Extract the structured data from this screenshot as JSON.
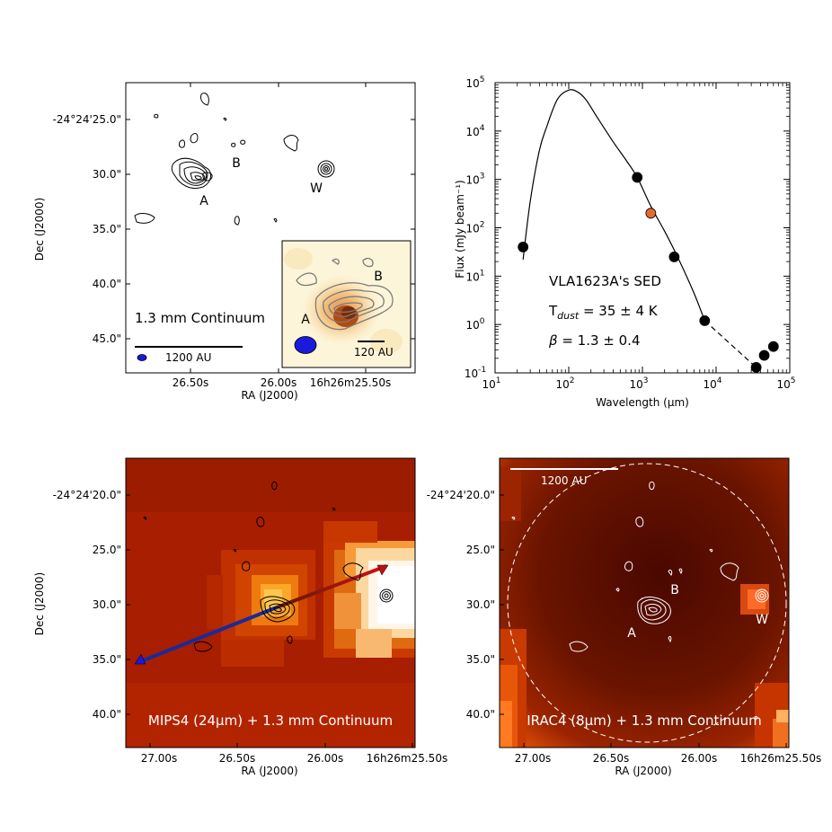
{
  "panels": {
    "continuum": {
      "ra_ticks": [
        "26.50s",
        "26.00s",
        "16h26m25.50s"
      ],
      "dec_ticks": [
        "-24°24'25.0\"",
        "30.0\"",
        "35.0\"",
        "40.0\"",
        "45.0\""
      ],
      "xlabel": "RA (J2000)",
      "ylabel": "Dec (J2000)",
      "label": "1.3 mm Continuum",
      "scalebar": "1200 AU",
      "sources": [
        "A",
        "B",
        "W"
      ],
      "inset": {
        "sources": [
          "A",
          "B"
        ],
        "scalebar": "120 AU"
      }
    },
    "sed": {
      "title": "VLA1623A's SED",
      "tdust_symbol": "T",
      "tdust_sub": "dust",
      "tdust_text": " = 35  ± 4 K",
      "beta_symbol": "β",
      "beta_text": " = 1.3  ± 0.4",
      "ylabel": "Flux (mJy beam⁻¹)",
      "xlabel": "Wavelength (μm)",
      "x_ticks_base": [
        "10",
        "10",
        "10",
        "10",
        "10"
      ],
      "x_ticks_exp": [
        "1",
        "2",
        "3",
        "4",
        "5"
      ],
      "y_ticks_base": [
        "10",
        "10",
        "10",
        "10",
        "10",
        "10",
        "10"
      ],
      "y_ticks_exp": [
        "-1",
        "0",
        "1",
        "2",
        "3",
        "4",
        "5"
      ]
    },
    "mips": {
      "ra_ticks": [
        "27.00s",
        "26.50s",
        "26.00s",
        "16h26m25.50s"
      ],
      "dec_ticks": [
        "-24°24'20.0\"",
        "25.0\"",
        "30.0\"",
        "35.0\"",
        "40.0\""
      ],
      "xlabel": "RA (J2000)",
      "ylabel": "Dec (J2000)",
      "label": "MIPS4 (24μm) + 1.3 mm Continuum"
    },
    "irac": {
      "ra_ticks": [
        "27.00s",
        "26.50s",
        "26.00s",
        "16h26m25.50s"
      ],
      "dec_ticks": [
        "-24°24'20.0\"",
        "25.0\"",
        "30.0\"",
        "35.0\"",
        "40.0\""
      ],
      "xlabel": "RA (J2000)",
      "label": "IRAC4 (8μm) + 1.3 mm Continuum",
      "scalebar": "1200 AU",
      "sources": [
        "A",
        "B",
        "W"
      ]
    }
  },
  "chart_data": {
    "type": "scatter",
    "xscale": "log",
    "yscale": "log",
    "xlim": [
      10,
      100000
    ],
    "ylim": [
      0.1,
      100000
    ],
    "grid": false,
    "points": [
      {
        "x": 24,
        "y": 40,
        "color": "#000000"
      },
      {
        "x": 850,
        "y": 1100,
        "color": "#000000"
      },
      {
        "x": 1300,
        "y": 200,
        "color": "#e86a2a"
      },
      {
        "x": 2700,
        "y": 25,
        "color": "#000000"
      },
      {
        "x": 7000,
        "y": 1.2,
        "color": "#000000"
      },
      {
        "x": 35000,
        "y": 0.13,
        "color": "#000000"
      },
      {
        "x": 45000,
        "y": 0.23,
        "color": "#000000"
      },
      {
        "x": 60000,
        "y": 0.35,
        "color": "#000000"
      }
    ],
    "model_curve": {
      "x": [
        24,
        30,
        40,
        50,
        70,
        100,
        130,
        170,
        250,
        400,
        600,
        850,
        1300,
        2000,
        3000,
        5000,
        7000
      ],
      "y": [
        22,
        350,
        4000,
        12000,
        45000,
        70000,
        65000,
        45000,
        18000,
        6000,
        2500,
        1100,
        280,
        85,
        25,
        4.5,
        1.2
      ],
      "style": "solid"
    },
    "extrapolation": {
      "x": [
        7000,
        35000
      ],
      "y": [
        1.2,
        0.13
      ],
      "style": "dashed"
    }
  }
}
